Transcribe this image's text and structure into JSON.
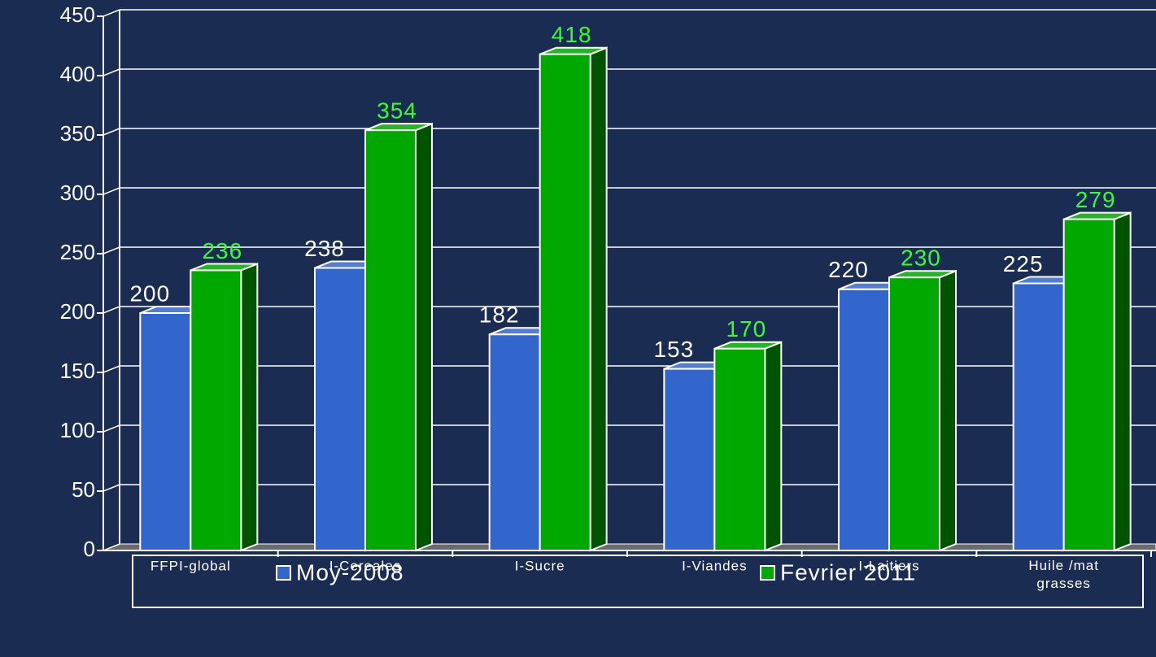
{
  "chart_data": {
    "type": "bar3d",
    "categories": [
      "FFPI-global",
      "I-Cereales",
      "I-Sucre",
      "I-Viandes",
      "I-Laitiers",
      "Huile /mat\ngrasses"
    ],
    "series": [
      {
        "name": "Moy-2008",
        "color": "#3366cc",
        "label_color": "#ffffff",
        "values": [
          200,
          238,
          182,
          153,
          220,
          225
        ]
      },
      {
        "name": "Fevrier 2011",
        "color": "#00a800",
        "label_color": "#33ff33",
        "values": [
          236,
          354,
          418,
          170,
          230,
          279
        ]
      }
    ],
    "ylim": [
      0,
      450
    ],
    "yticks": [
      0,
      50,
      100,
      150,
      200,
      250,
      300,
      350,
      400,
      450
    ],
    "grid": true,
    "legend": "bottom"
  }
}
